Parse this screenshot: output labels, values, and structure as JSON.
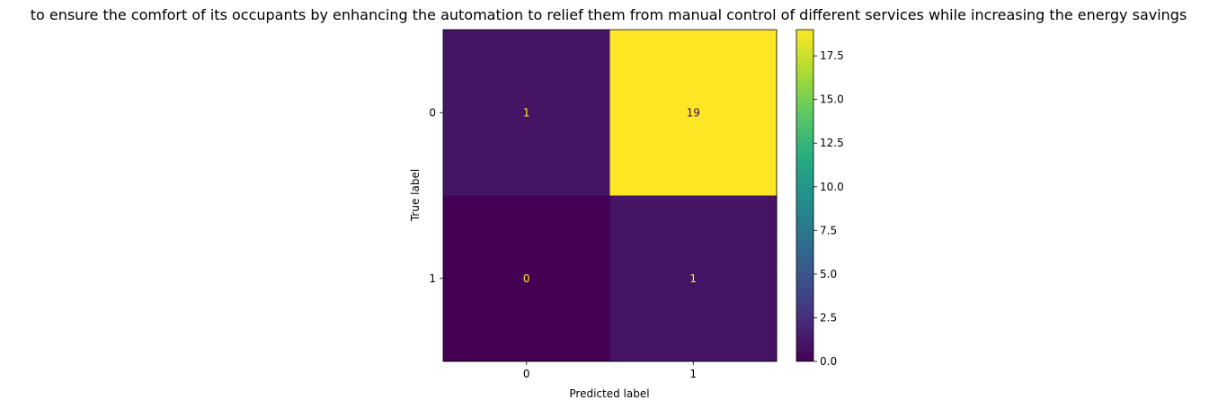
{
  "chart_data": {
    "type": "heatmap",
    "title": "to ensure the comfort of its occupants by enhancing the automation to relief them from manual control of different services while increasing the energy savings",
    "xlabel": "Predicted label",
    "ylabel": "True label",
    "x_categories": [
      "0",
      "1"
    ],
    "y_categories": [
      "0",
      "1"
    ],
    "values": [
      [
        1,
        19
      ],
      [
        0,
        1
      ]
    ],
    "colormap": "viridis",
    "colorbar": {
      "range": [
        0.0,
        19.0
      ],
      "ticks": [
        0.0,
        2.5,
        5.0,
        7.5,
        10.0,
        12.5,
        15.0,
        17.5
      ],
      "tick_labels": [
        "0.0",
        "2.5",
        "5.0",
        "7.5",
        "10.0",
        "12.5",
        "15.0",
        "17.5"
      ]
    },
    "colors": {
      "low_text": "#fde725",
      "high_text": "#440154"
    }
  }
}
